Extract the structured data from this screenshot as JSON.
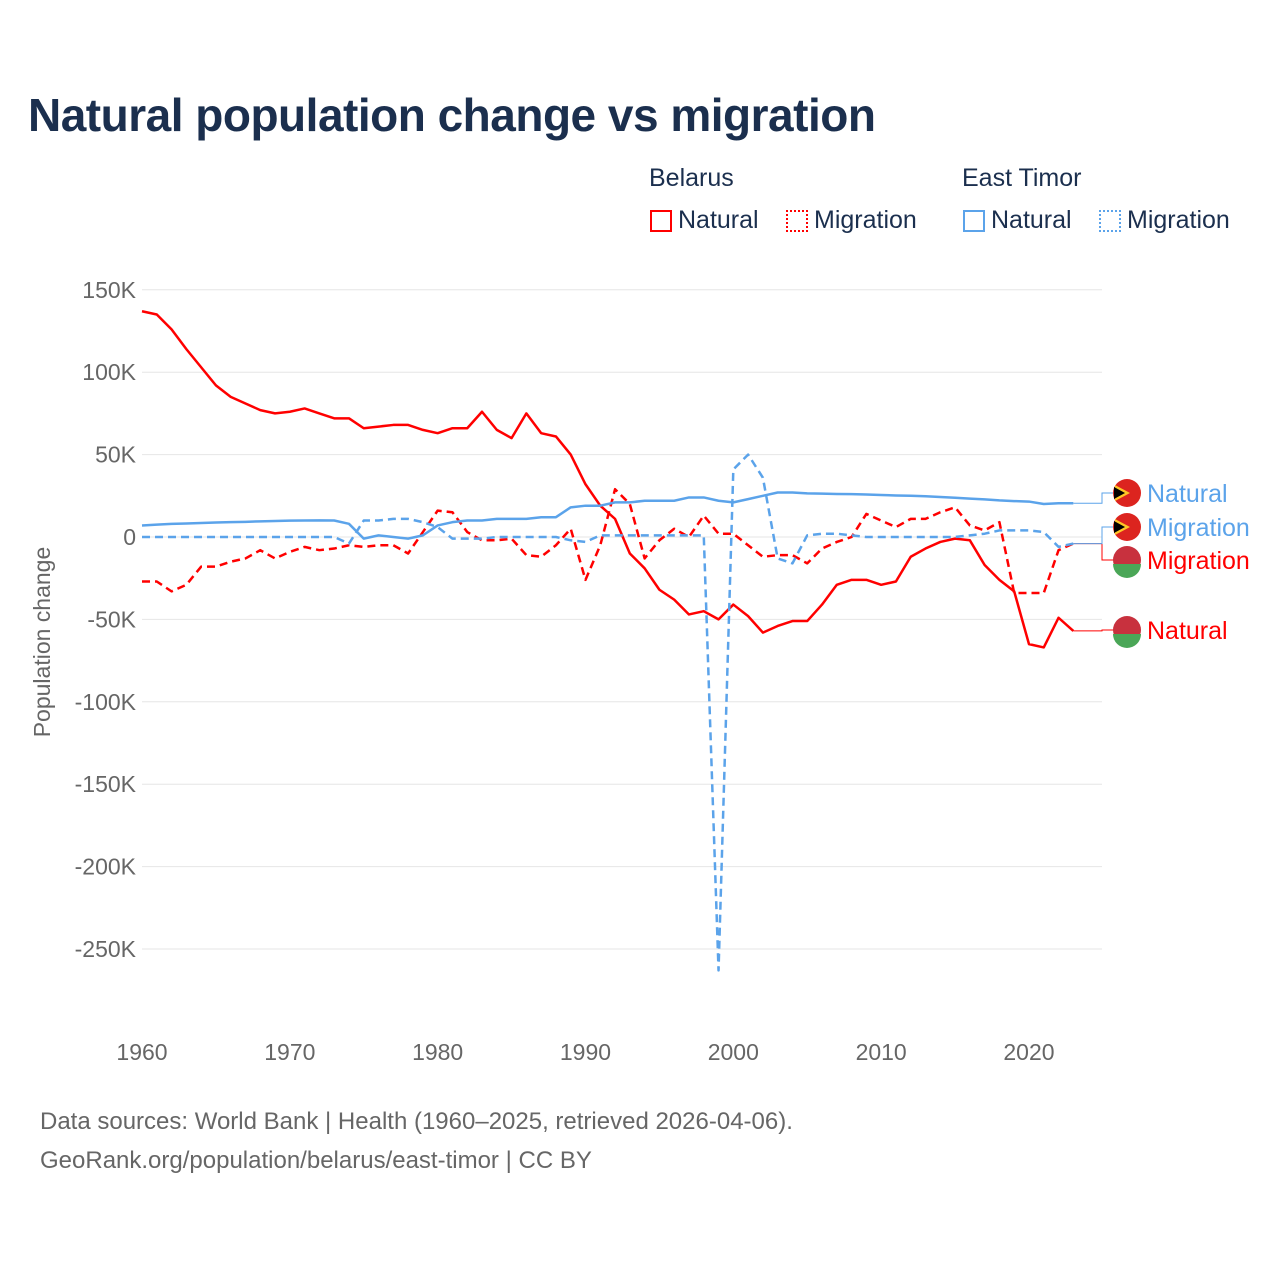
{
  "title": "Natural population change vs migration",
  "legend": {
    "groups": [
      {
        "name": "Belarus",
        "items": [
          "Natural",
          "Migration"
        ],
        "color": "#ff0000"
      },
      {
        "name": "East Timor",
        "items": [
          "Natural",
          "Migration"
        ],
        "color": "#5ba3ea"
      }
    ]
  },
  "chart_data": {
    "type": "line",
    "title": "Natural population change vs migration",
    "xlabel": "",
    "ylabel": "Population change",
    "xlim": [
      1960,
      2025
    ],
    "ylim": [
      -280000,
      160000
    ],
    "x_ticks": [
      1960,
      1970,
      1980,
      1990,
      2000,
      2010,
      2020
    ],
    "x_tick_labels": [
      "1960",
      "1970",
      "1980",
      "1990",
      "2000",
      "2010",
      "2020"
    ],
    "y_ticks": [
      150000,
      100000,
      50000,
      0,
      -50000,
      -100000,
      -150000,
      -200000,
      -250000
    ],
    "y_tick_labels": [
      "150K",
      "100K",
      "50K",
      "0",
      "-50K",
      "-100K",
      "-150K",
      "-200K",
      "-250K"
    ],
    "grid": true,
    "x_start": 1960,
    "series": [
      {
        "name": "Belarus Natural",
        "end_label": "Natural",
        "country": "Belarus",
        "color": "#ff0000",
        "dash": false,
        "values": [
          137,
          135,
          126,
          114,
          103,
          92,
          85,
          81,
          77,
          75,
          76,
          78,
          75,
          72,
          72,
          66,
          67,
          68,
          68,
          65,
          63,
          66,
          66,
          76,
          65,
          60,
          75,
          63,
          61,
          50,
          32,
          19,
          11,
          -10,
          -19,
          -32,
          -38,
          -47,
          -45,
          -50,
          -41,
          -48,
          -58,
          -54,
          -51,
          -51,
          -41,
          -29,
          -26,
          -26,
          -29,
          -27,
          -12,
          -7,
          -3,
          -1,
          -2,
          -17,
          -26,
          -33,
          -65,
          -67,
          -49,
          -57
        ]
      },
      {
        "name": "Belarus Migration",
        "end_label": "Migration",
        "country": "Belarus",
        "color": "#ff0000",
        "dash": true,
        "values": [
          -27,
          -27,
          -33,
          -29,
          -18,
          -18,
          -15,
          -13,
          -8,
          -13,
          -9,
          -6,
          -8,
          -7,
          -5,
          -6,
          -5,
          -5,
          -10,
          3,
          16,
          15,
          3,
          -2,
          -2,
          -1,
          -11,
          -12,
          -5,
          5,
          -26,
          -5,
          29,
          20,
          -13,
          -2,
          5,
          0,
          13,
          2,
          2,
          -5,
          -12,
          -11,
          -11,
          -16,
          -7,
          -3,
          0,
          14,
          10,
          6,
          11,
          11,
          15,
          18,
          7,
          4,
          9,
          -34,
          -34,
          -34,
          -8,
          -4
        ]
      },
      {
        "name": "East Timor Natural",
        "end_label": "Natural",
        "country": "East Timor",
        "color": "#5ba3ea",
        "dash": false,
        "values": [
          7,
          7.5,
          8,
          8.2,
          8.5,
          8.8,
          9,
          9.2,
          9.5,
          9.7,
          9.9,
          10,
          10.1,
          10,
          8,
          -1,
          1,
          0,
          -1,
          1,
          7,
          9,
          10,
          10,
          11,
          11,
          11,
          12,
          12,
          18,
          19,
          19,
          21,
          21,
          22,
          22,
          22,
          24,
          24,
          22,
          21,
          23,
          25,
          27,
          27,
          26.5,
          26.3,
          26.1,
          26,
          25.8,
          25.5,
          25.2,
          25,
          24.7,
          24.3,
          23.8,
          23.3,
          22.8,
          22.2,
          21.8,
          21.5,
          20,
          20.5,
          20.5
        ]
      },
      {
        "name": "East Timor Migration",
        "end_label": "Migration",
        "country": "East Timor",
        "color": "#5ba3ea",
        "dash": true,
        "values": [
          0,
          0,
          0,
          0,
          0,
          0,
          0,
          0,
          0,
          0,
          0,
          0,
          0,
          0,
          -4,
          10,
          10,
          11,
          11,
          9,
          6,
          -1,
          -1,
          -1,
          0,
          0,
          0,
          0,
          0,
          -2,
          -3,
          1,
          1,
          1,
          1,
          1,
          1,
          1,
          1,
          -263,
          41,
          50,
          36,
          -13,
          -16,
          1,
          2,
          2,
          1,
          0,
          0,
          0,
          0,
          0,
          0,
          0,
          1,
          2,
          4,
          4,
          4,
          3,
          -6,
          -4
        ]
      }
    ],
    "value_unit": "thousands"
  },
  "sources": {
    "line1": "Data sources: World Bank | Health (1960–2025, retrieved 2026-04-06).",
    "line2": "GeoRank.org/population/belarus/east-timor | CC BY"
  }
}
